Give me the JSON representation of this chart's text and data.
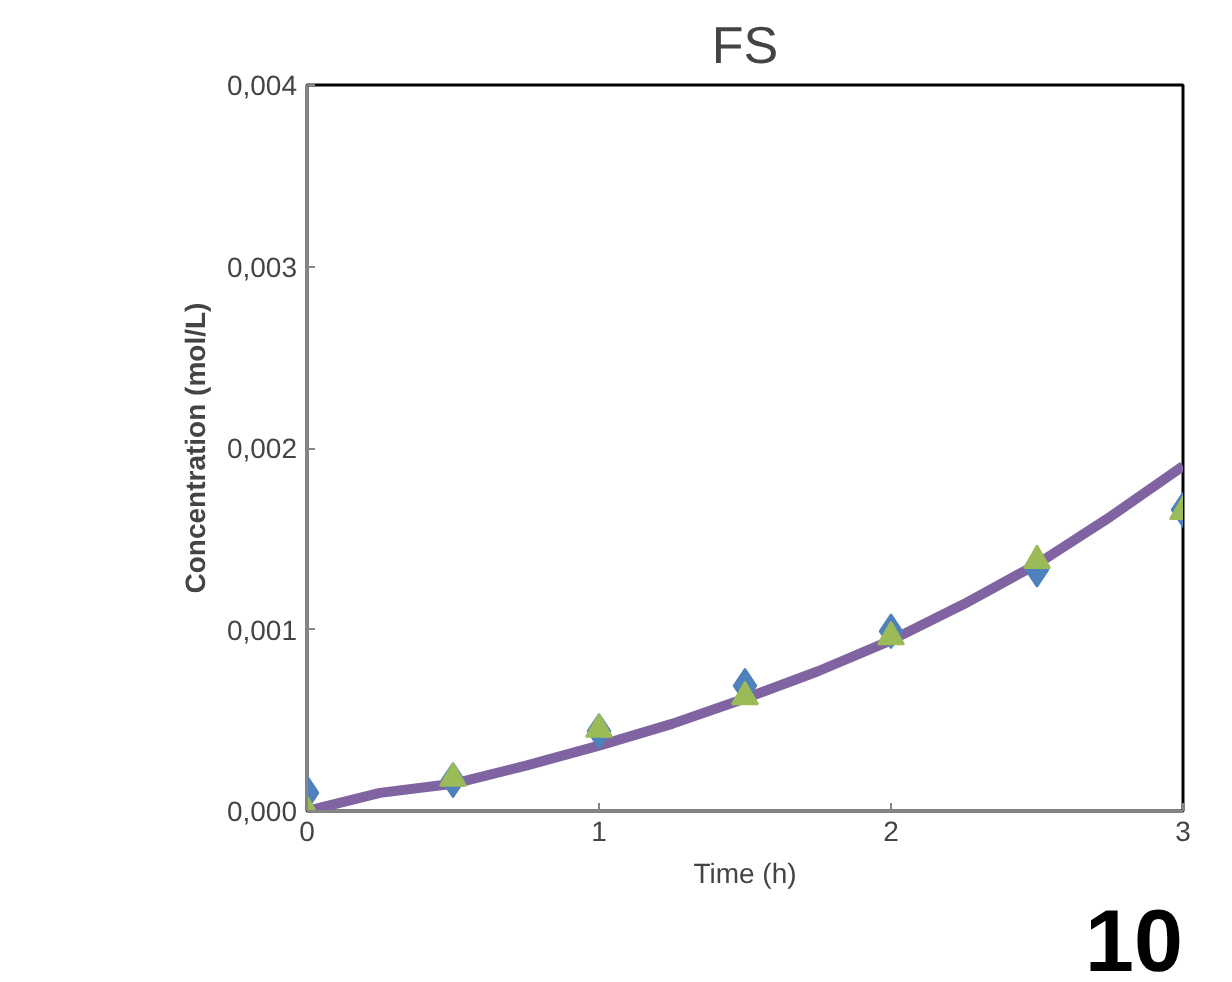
{
  "chart_data": {
    "type": "scatter",
    "title": "FS",
    "xlabel": "Time (h)",
    "ylabel": "Concentration (mol/L)",
    "xlim": [
      0,
      3
    ],
    "xticks": [
      0,
      1,
      2,
      3
    ],
    "ylim": [
      0,
      0.004
    ],
    "yticks": [
      {
        "value": 0,
        "label": "0,000"
      },
      {
        "value": 0.001,
        "label": "0,001"
      },
      {
        "value": 0.002,
        "label": "0,002"
      },
      {
        "value": 0.003,
        "label": "0,003"
      },
      {
        "value": 0.004,
        "label": "0,004"
      }
    ],
    "grid": false,
    "series": [
      {
        "type": "line",
        "color": "#8064a2",
        "marker": "none",
        "line_style": "solid",
        "x": [
          0,
          0.25,
          0.5,
          0.75,
          1,
          1.25,
          1.5,
          1.75,
          2,
          2.25,
          2.5,
          2.75,
          3
        ],
        "values": [
          0,
          0.0001,
          0.00015,
          0.00025,
          0.00036,
          0.00048,
          0.00062,
          0.00077,
          0.00094,
          0.00114,
          0.00136,
          0.00162,
          0.0019
        ]
      },
      {
        "color": "#4f81bd",
        "marker": "diamond",
        "x": [
          0,
          0.5,
          1,
          1.5,
          2,
          2.5,
          3
        ],
        "values": [
          0.0001,
          0.00017,
          0.00044,
          0.00069,
          0.00099,
          0.00133,
          0.00166
        ]
      },
      {
        "color": "#9bbb59",
        "marker": "triangle",
        "x": [
          0,
          0.5,
          1,
          1.5,
          2,
          2.5,
          3
        ],
        "values": [
          0,
          0.00018,
          0.00045,
          0.00063,
          0.00096,
          0.00138,
          0.00165
        ]
      }
    ],
    "annotations": [
      "10"
    ]
  }
}
